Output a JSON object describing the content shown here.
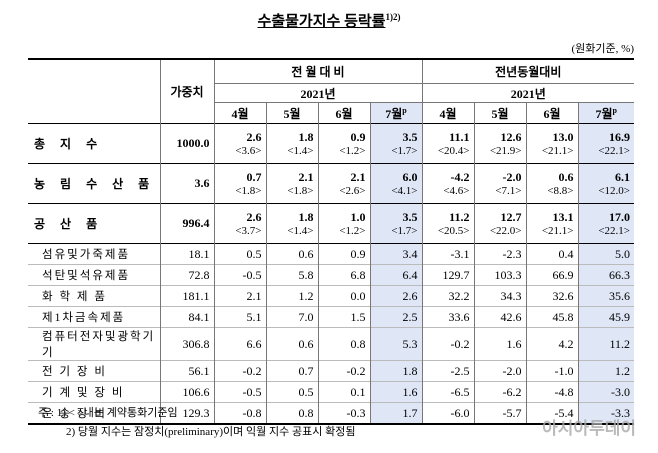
{
  "title": "수출물가지수 등락률",
  "title_sup": "1)2)",
  "unit": "(원화기준, %)",
  "header": {
    "weight": "가중치",
    "groups": [
      {
        "title": "전 월 대 비",
        "year": "2021년",
        "months": [
          "4월",
          "5월",
          "6월",
          "7월"
        ],
        "sup": "p"
      },
      {
        "title": "전년동월대비",
        "year": "2021년",
        "months": [
          "4월",
          "5월",
          "6월",
          "7월"
        ],
        "sup": "p"
      }
    ]
  },
  "main_rows": [
    {
      "label": "총 지 수",
      "weight": "1000.0",
      "prev": [
        "2.6",
        "1.8",
        "0.9",
        "3.5"
      ],
      "yoy": [
        "11.1",
        "12.6",
        "13.0",
        "16.9"
      ],
      "prev_contract": [
        "<3.6>",
        "<1.4>",
        "<1.2>",
        "<1.7>"
      ],
      "yoy_contract": [
        "<20.4>",
        "<21.9>",
        "<21.1>",
        "<22.1>"
      ]
    },
    {
      "label": "농 림 수 산 품",
      "weight": "3.6",
      "prev": [
        "0.7",
        "2.1",
        "2.1",
        "6.0"
      ],
      "yoy": [
        "-4.2",
        "-2.0",
        "0.6",
        "6.1"
      ],
      "prev_contract": [
        "<1.8>",
        "<1.8>",
        "<2.6>",
        "<4.1>"
      ],
      "yoy_contract": [
        "<4.6>",
        "<7.1>",
        "<8.8>",
        "<12.0>"
      ]
    },
    {
      "label": "공 산 품",
      "weight": "996.4",
      "prev": [
        "2.6",
        "1.8",
        "1.0",
        "3.5"
      ],
      "yoy": [
        "11.2",
        "12.7",
        "13.1",
        "17.0"
      ],
      "prev_contract": [
        "<3.7>",
        "<1.4>",
        "<1.2>",
        "<1.7>"
      ],
      "yoy_contract": [
        "<20.5>",
        "<22.0>",
        "<21.1>",
        "<22.1>"
      ]
    }
  ],
  "sub_rows": [
    {
      "label": "섬유및가죽제품",
      "weight": "18.1",
      "prev": [
        "0.5",
        "0.6",
        "0.9",
        "3.4"
      ],
      "yoy": [
        "-3.1",
        "-2.3",
        "0.4",
        "5.0"
      ]
    },
    {
      "label": "석탄및석유제품",
      "weight": "72.8",
      "prev": [
        "-0.5",
        "5.8",
        "6.8",
        "6.4"
      ],
      "yoy": [
        "129.7",
        "103.3",
        "66.9",
        "66.3"
      ]
    },
    {
      "label": "화 학 제 품",
      "weight": "181.1",
      "prev": [
        "2.1",
        "1.2",
        "0.0",
        "2.6"
      ],
      "yoy": [
        "32.2",
        "34.3",
        "32.6",
        "35.6"
      ]
    },
    {
      "label": "제1차금속제품",
      "weight": "84.1",
      "prev": [
        "5.1",
        "7.0",
        "1.5",
        "2.5"
      ],
      "yoy": [
        "33.6",
        "42.6",
        "45.8",
        "45.9"
      ]
    },
    {
      "label": "컴퓨터전자및광학기기",
      "weight": "306.8",
      "prev": [
        "6.6",
        "0.6",
        "0.8",
        "5.3"
      ],
      "yoy": [
        "-0.2",
        "1.6",
        "4.2",
        "11.2"
      ]
    },
    {
      "label": "전 기 장 비",
      "weight": "56.1",
      "prev": [
        "-0.2",
        "0.7",
        "-0.2",
        "1.8"
      ],
      "yoy": [
        "-2.5",
        "-2.0",
        "-1.0",
        "1.2"
      ]
    },
    {
      "label": "기 계 및 장 비",
      "weight": "106.6",
      "prev": [
        "-0.5",
        "0.5",
        "0.1",
        "1.6"
      ],
      "yoy": [
        "-6.5",
        "-6.2",
        "-4.8",
        "-3.0"
      ]
    },
    {
      "label": "운 송 장 비",
      "weight": "129.3",
      "prev": [
        "-0.8",
        "0.8",
        "-0.3",
        "1.7"
      ],
      "yoy": [
        "-6.0",
        "-5.7",
        "-5.4",
        "-3.3"
      ]
    }
  ],
  "notes": [
    "주 :",
    "1) < >내는 계약통화기준임",
    "2) 당월 지수는 잠정치(preliminary)이며 익월 지수 공표시 확정됨"
  ],
  "watermark": "아시아투데이"
}
